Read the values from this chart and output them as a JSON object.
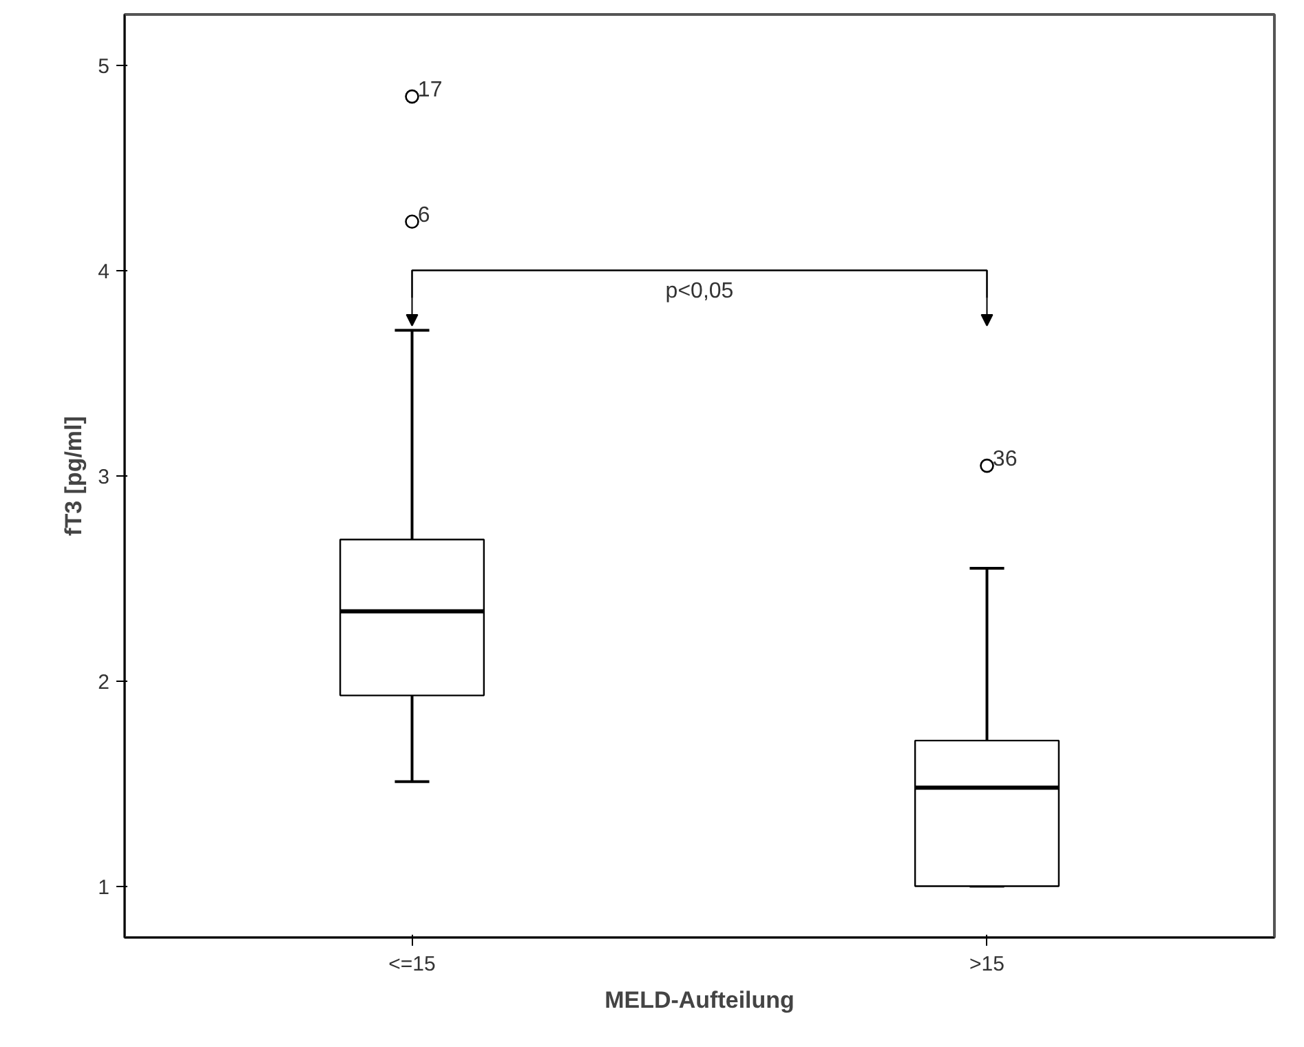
{
  "chart_data": {
    "type": "box",
    "xlabel": "MELD-Aufteilung",
    "ylabel": "fT3 [pg/ml]",
    "categories": [
      "<=15",
      ">15"
    ],
    "boxes": [
      {
        "low": 1.51,
        "q1": 1.93,
        "median": 2.34,
        "q3": 2.69,
        "high": 3.71,
        "outliers": [
          4.85,
          4.24
        ]
      },
      {
        "low": 1.0,
        "q1": 1.0,
        "median": 1.48,
        "q3": 1.71,
        "high": 2.55,
        "outliers": [
          3.05
        ]
      }
    ],
    "ylim": [
      0.75,
      5.25
    ],
    "yticks": [
      1,
      2,
      3,
      4,
      5
    ],
    "grid": false,
    "annotations": [
      "17",
      "6",
      "36",
      "p<0,05"
    ]
  }
}
